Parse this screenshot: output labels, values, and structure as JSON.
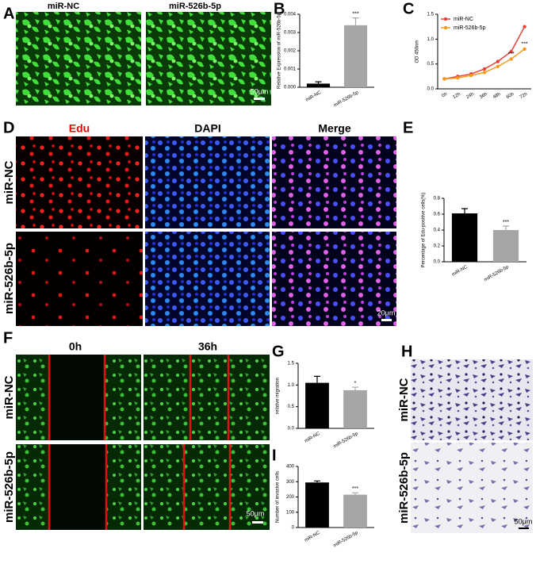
{
  "labels": {
    "panels": [
      "A",
      "B",
      "C",
      "D",
      "E",
      "F",
      "G",
      "H",
      "I"
    ],
    "a_captions": [
      "miR-NC",
      "miR-526b-5p"
    ],
    "d_columns": [
      "Edu",
      "DAPI",
      "Merge"
    ],
    "d_rows": [
      "miR-NC",
      "miR-526b-5p"
    ],
    "f_columns": [
      "0h",
      "36h"
    ],
    "f_rows": [
      "miR-NC",
      "miR-526b-5p"
    ],
    "h_rows": [
      "miR-NC",
      "miR-526b-5p"
    ],
    "scale_bars": [
      "50μm",
      "20μm",
      "50μm",
      "50μm"
    ]
  },
  "chart_data": [
    {
      "type": "bar",
      "y_label": "Relative Expression of miR-526b-5p",
      "categories": [
        "miR-NC",
        "miR-526b-5p"
      ],
      "values": [
        0.0002,
        0.0034
      ],
      "errors": [
        0.0001,
        0.0004
      ],
      "colors": [
        "#000000",
        "#a6a6a6"
      ],
      "annotation": "***",
      "ylim": [
        0,
        0.004
      ],
      "yticks": [
        {
          "value": 0,
          "label": "0.000"
        },
        {
          "value": 0.001,
          "label": "0.001"
        },
        {
          "value": 0.002,
          "label": "0.002"
        },
        {
          "value": 0.003,
          "label": "0.003"
        },
        {
          "value": 0.004,
          "label": "0.004"
        }
      ]
    },
    {
      "type": "line",
      "y_label": "OD 450nm",
      "categories": [
        "0h",
        "12h",
        "24h",
        "36h",
        "48h",
        "60h",
        "72h"
      ],
      "series": [
        {
          "name": "miR-NC",
          "color": "#e8423a",
          "values": [
            0.2,
            0.25,
            0.3,
            0.4,
            0.55,
            0.75,
            1.25
          ]
        },
        {
          "name": "miR-526b-5p",
          "color": "#f39a1e",
          "values": [
            0.2,
            0.22,
            0.27,
            0.33,
            0.45,
            0.6,
            0.8
          ]
        }
      ],
      "annotations": [
        "***",
        "***"
      ],
      "ylim": [
        0,
        1.5
      ],
      "yticks": [
        {
          "value": 0,
          "label": "0.0"
        },
        {
          "value": 0.5,
          "label": "0.5"
        },
        {
          "value": 1,
          "label": "1.0"
        },
        1.5
      ]
    },
    {
      "type": "bar",
      "y_label": "Percentage of Edu-positive cells(%)",
      "categories": [
        "miR-NC",
        "miR-526b-5p"
      ],
      "values": [
        0.61,
        0.4
      ],
      "errors": [
        0.06,
        0.05
      ],
      "colors": [
        "#000000",
        "#a6a6a6"
      ],
      "annotation": "***",
      "ylim": [
        0,
        0.8
      ],
      "yticks": [
        {
          "value": 0,
          "label": "0.0"
        },
        0.2,
        0.4,
        0.6,
        0.8
      ]
    },
    {
      "type": "bar",
      "y_label": "relative migration",
      "categories": [
        "miR-NC",
        "miR-526b-5p"
      ],
      "values": [
        1.05,
        0.88
      ],
      "errors": [
        0.15,
        0.07
      ],
      "colors": [
        "#000000",
        "#a6a6a6"
      ],
      "annotation": "*",
      "ylim": [
        0,
        1.5
      ],
      "yticks": [
        {
          "value": 0,
          "label": "0.0"
        },
        0.5,
        {
          "value": 1,
          "label": "1.0"
        },
        1.5
      ]
    },
    {
      "type": "bar",
      "y_label": "Number of invasive cells",
      "categories": [
        "miR-NC",
        "miR-526b-5p"
      ],
      "values": [
        295,
        215
      ],
      "errors": [
        10,
        12
      ],
      "colors": [
        "#000000",
        "#a6a6a6"
      ],
      "annotation": "***",
      "ylim": [
        0,
        400
      ],
      "yticks": [
        0,
        100,
        200,
        300,
        400
      ]
    }
  ]
}
